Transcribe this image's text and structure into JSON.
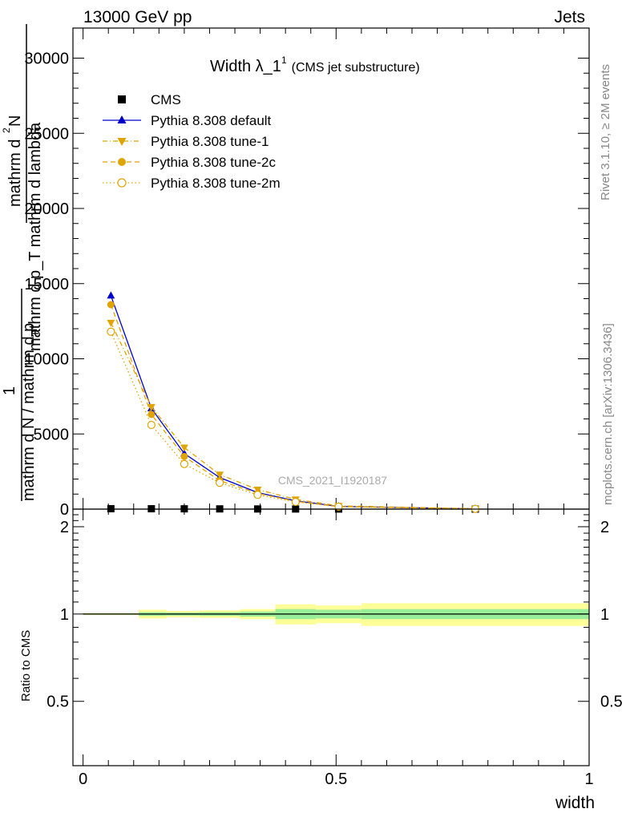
{
  "header": {
    "left": "13000 GeV pp",
    "right": "Jets"
  },
  "side_labels": {
    "rivet": "Rivet 3.1.10, ≥ 2M events",
    "mcplots": "mcplots.cern.ch [arXiv:1306.3436]"
  },
  "chart_data": [
    {
      "type": "line",
      "title_main": "Width λ_1",
      "title_sup": "1",
      "title_sub": "(CMS jet substructure)",
      "ylabel_top_1": "mathrm d",
      "ylabel_top_2": "2",
      "ylabel_top_3": "N",
      "ylabel_mid": "mathrm d p_T mathrm d lambda",
      "ylabel_one": "1",
      "ylabel_bottom_1": "mathrm d N / mathrm d p",
      "ylabel_bottom_2": "T",
      "watermark": "CMS_2021_I1920187",
      "xlim": [
        -0.02,
        1.0
      ],
      "ylim": [
        0,
        32000
      ],
      "yticks": [
        0,
        5000,
        10000,
        15000,
        20000,
        25000,
        30000
      ],
      "ytick_labels": [
        "0",
        "5000",
        "10000",
        "15000",
        "20000",
        "25000",
        "30000"
      ],
      "legend_position": "top-left",
      "series": [
        {
          "name": "CMS",
          "color": "#000000",
          "marker": "square",
          "x": [
            0.055,
            0.135,
            0.2,
            0.27,
            0.345,
            0.42,
            0.505,
            0.775
          ],
          "y": [
            30,
            25,
            20,
            15,
            10,
            8,
            5,
            2
          ]
        },
        {
          "name": "Pythia 8.308 default",
          "color": "#0000cc",
          "marker": "triangle-up",
          "line": "solid",
          "x": [
            0.055,
            0.135,
            0.2,
            0.27,
            0.345,
            0.42,
            0.505,
            0.775
          ],
          "y": [
            14200,
            6700,
            3700,
            2100,
            1100,
            550,
            180,
            20
          ]
        },
        {
          "name": "Pythia 8.308 tune-1",
          "color": "#e0a400",
          "marker": "triangle-down",
          "line": "dashdot",
          "x": [
            0.055,
            0.135,
            0.2,
            0.27,
            0.345,
            0.42,
            0.505,
            0.775
          ],
          "y": [
            12400,
            6800,
            4100,
            2300,
            1300,
            650,
            220,
            25
          ]
        },
        {
          "name": "Pythia 8.308 tune-2c",
          "color": "#e0a400",
          "marker": "circle-filled",
          "line": "dashed",
          "x": [
            0.055,
            0.135,
            0.2,
            0.27,
            0.345,
            0.42,
            0.505,
            0.775
          ],
          "y": [
            13600,
            6300,
            3500,
            1900,
            1050,
            520,
            170,
            20
          ]
        },
        {
          "name": "Pythia 8.308 tune-2m",
          "color": "#e0a400",
          "marker": "circle-open",
          "line": "dotted",
          "x": [
            0.055,
            0.135,
            0.2,
            0.27,
            0.345,
            0.42,
            0.505,
            0.775
          ],
          "y": [
            11800,
            5600,
            3000,
            1750,
            950,
            480,
            160,
            18
          ]
        }
      ]
    },
    {
      "type": "area",
      "ylabel": "Ratio to CMS",
      "xlabel": "width",
      "xlim": [
        -0.02,
        1.0
      ],
      "ylim": [
        0.3,
        2.3
      ],
      "yticks": [
        0.5,
        1,
        2
      ],
      "ytick_labels": [
        "0.5",
        "1",
        "2"
      ],
      "xticks": [
        0,
        0.5,
        1
      ],
      "xtick_labels": [
        "0",
        "0.5",
        "1"
      ],
      "bins": [
        0.0,
        0.11,
        0.165,
        0.23,
        0.31,
        0.38,
        0.46,
        0.55,
        1.0
      ],
      "band_green_halfwidth": [
        0.005,
        0.015,
        0.012,
        0.015,
        0.02,
        0.04,
        0.035,
        0.04
      ],
      "band_yellow_halfwidth": [
        0.008,
        0.035,
        0.025,
        0.03,
        0.04,
        0.08,
        0.07,
        0.09
      ]
    }
  ]
}
